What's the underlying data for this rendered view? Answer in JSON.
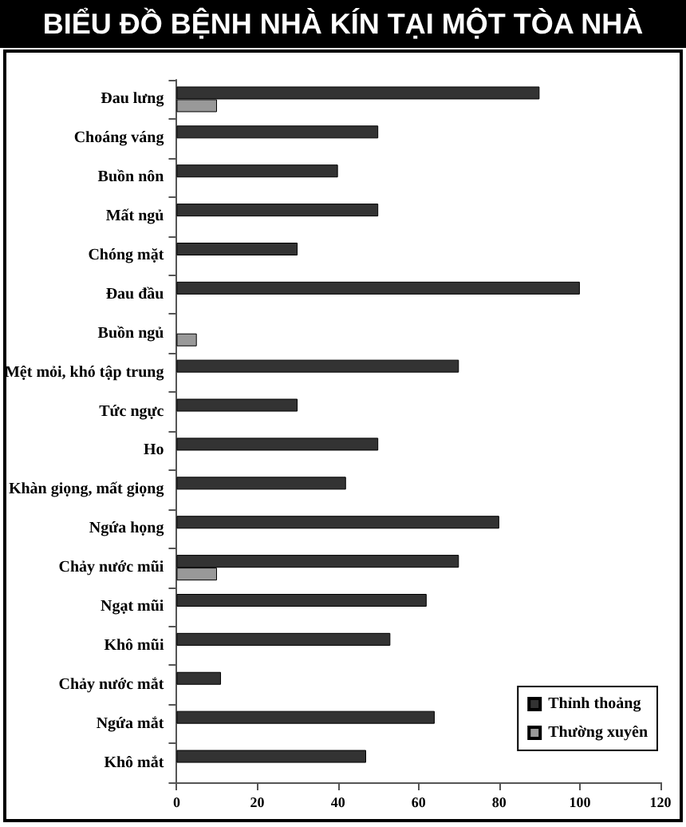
{
  "chart_data": {
    "type": "bar",
    "orientation": "horizontal",
    "title": "BIỂU ĐỒ BỆNH NHÀ KÍN TẠI MỘT TÒA NHÀ",
    "categories": [
      "Đau lưng",
      "Choáng váng",
      "Buồn nôn",
      "Mất ngủ",
      "Chóng mặt",
      "Đau đầu",
      "Buồn ngủ",
      "Mệt mỏi, khó tập trung",
      "Tức ngực",
      "Ho",
      "Khàn giọng, mất giọng",
      "Ngứa họng",
      "Chảy nước mũi",
      "Ngạt mũi",
      "Khô mũi",
      "Chảy nước mắt",
      "Ngứa mắt",
      "Khô mắt"
    ],
    "series": [
      {
        "name": "Thỉnh thoảng",
        "color": "#333333",
        "values": [
          90,
          50,
          40,
          50,
          30,
          100,
          null,
          70,
          30,
          50,
          42,
          80,
          70,
          62,
          53,
          11,
          64,
          47
        ]
      },
      {
        "name": "Thường xuyên",
        "color": "#999999",
        "values": [
          10,
          null,
          null,
          null,
          null,
          null,
          5,
          null,
          null,
          null,
          null,
          null,
          10,
          null,
          null,
          null,
          null,
          null
        ]
      }
    ],
    "xlim": [
      0,
      120
    ],
    "xticks": [
      0,
      20,
      40,
      60,
      80,
      100,
      120
    ],
    "grid": false,
    "legend": "bottom right"
  }
}
